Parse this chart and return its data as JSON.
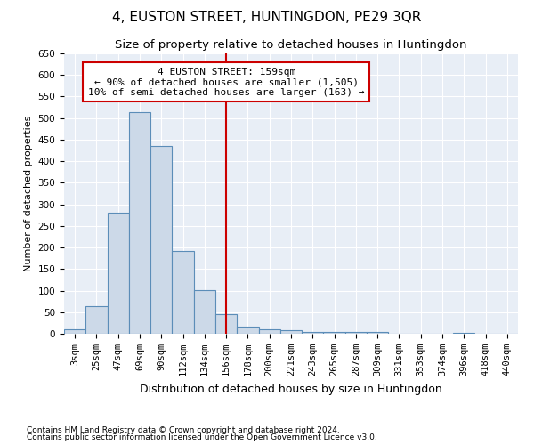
{
  "title": "4, EUSTON STREET, HUNTINGDON, PE29 3QR",
  "subtitle": "Size of property relative to detached houses in Huntingdon",
  "xlabel": "Distribution of detached houses by size in Huntingdon",
  "ylabel": "Number of detached properties",
  "footnote1": "Contains HM Land Registry data © Crown copyright and database right 2024.",
  "footnote2": "Contains public sector information licensed under the Open Government Licence v3.0.",
  "bar_labels": [
    "3sqm",
    "25sqm",
    "47sqm",
    "69sqm",
    "90sqm",
    "112sqm",
    "134sqm",
    "156sqm",
    "178sqm",
    "200sqm",
    "221sqm",
    "243sqm",
    "265sqm",
    "287sqm",
    "309sqm",
    "331sqm",
    "353sqm",
    "374sqm",
    "396sqm",
    "418sqm",
    "440sqm"
  ],
  "bar_values": [
    10,
    65,
    280,
    513,
    435,
    192,
    101,
    45,
    16,
    11,
    9,
    4,
    5,
    5,
    4,
    0,
    0,
    0,
    3,
    0,
    0
  ],
  "bar_color": "#ccd9e8",
  "bar_edge_color": "#5b8db8",
  "vline_pos": 7,
  "annotation_line1": "4 EUSTON STREET: 159sqm",
  "annotation_line2": "← 90% of detached houses are smaller (1,505)",
  "annotation_line3": "10% of semi-detached houses are larger (163) →",
  "annotation_box_color": "#ffffff",
  "annotation_box_edge": "#cc0000",
  "vline_color": "#cc0000",
  "ylim": [
    0,
    650
  ],
  "yticks": [
    0,
    50,
    100,
    150,
    200,
    250,
    300,
    350,
    400,
    450,
    500,
    550,
    600,
    650
  ],
  "bg_color": "#e8eef6",
  "title_fontsize": 11,
  "subtitle_fontsize": 9.5,
  "xlabel_fontsize": 9,
  "ylabel_fontsize": 8,
  "tick_fontsize": 7.5,
  "footnote_fontsize": 6.5,
  "annotation_fontsize": 8
}
